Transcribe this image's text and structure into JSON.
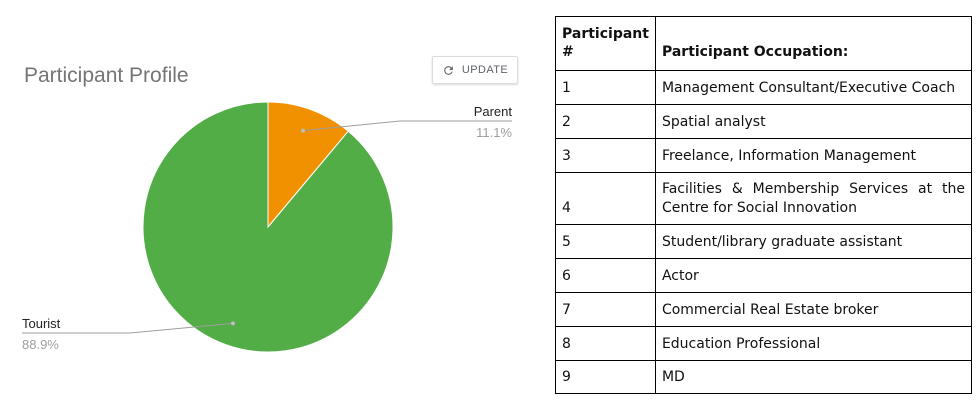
{
  "chart": {
    "title": "Participant Profile",
    "update_label": "UPDATE"
  },
  "chart_data": {
    "type": "pie",
    "title": "Participant Profile",
    "slices": [
      {
        "label": "Parent",
        "value": 11.1,
        "value_label": "11.1%",
        "color": "#f29100"
      },
      {
        "label": "Tourist",
        "value": 88.9,
        "value_label": "88.9%",
        "color": "#52ad46"
      }
    ]
  },
  "table": {
    "headers": {
      "number": "Participant #",
      "occupation": "Participant Occupation:"
    },
    "rows": [
      {
        "number": "1",
        "occupation": "Management Consultant/Executive Coach"
      },
      {
        "number": "2",
        "occupation": "Spatial analyst"
      },
      {
        "number": "3",
        "occupation": "Freelance, Information Management"
      },
      {
        "number": "4",
        "occupation": "Facilities & Membership Services at the Centre for Social Innovation"
      },
      {
        "number": "5",
        "occupation": "Student/library graduate assistant"
      },
      {
        "number": "6",
        "occupation": "Actor"
      },
      {
        "number": "7",
        "occupation": "Commercial Real Estate broker"
      },
      {
        "number": "8",
        "occupation": "Education Professional"
      },
      {
        "number": "9",
        "occupation": "MD"
      }
    ]
  }
}
